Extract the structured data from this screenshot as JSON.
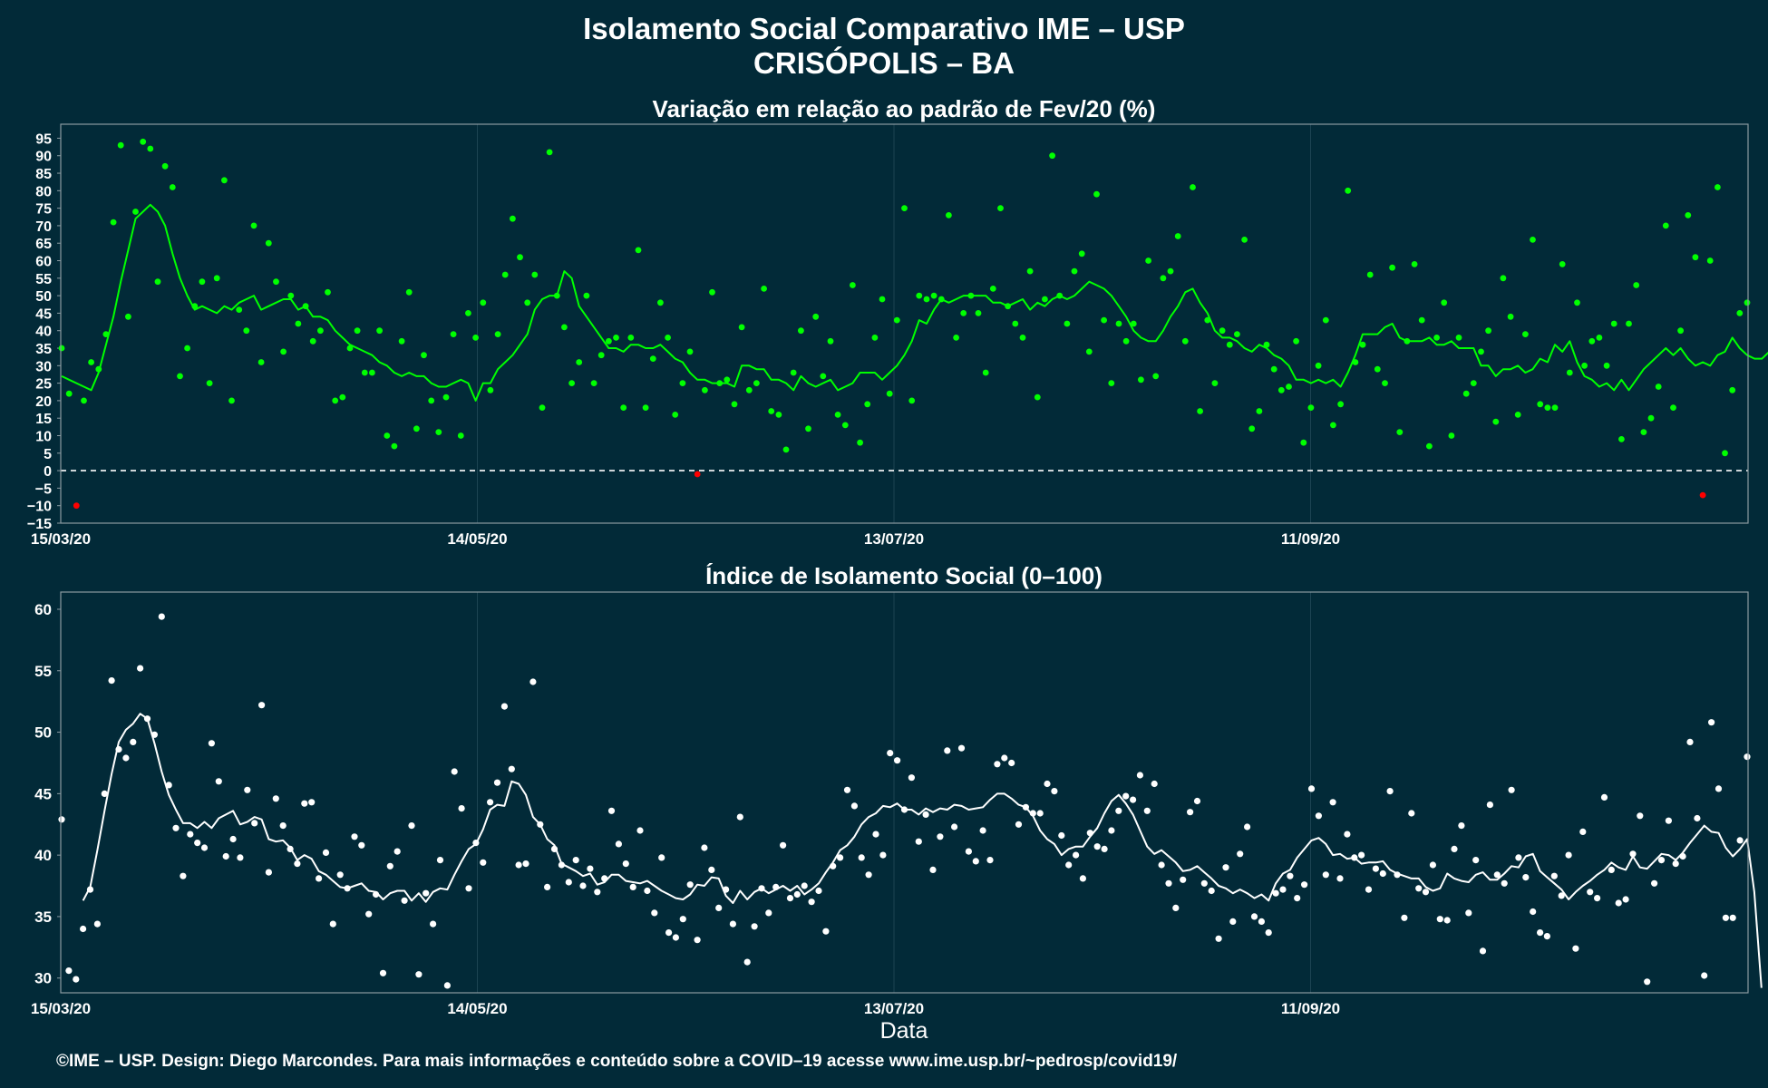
{
  "page": {
    "title_line1": "Isolamento Social Comparativo IME – USP",
    "title_line2": "CRISÓPOLIS – BA",
    "footer": "©IME – USP. Design: Diego Marcondes. Para mais informações e conteúdo sobre a COVID–19 acesse www.ime.usp.br/~pedrosp/covid19/",
    "xlabel": "Data"
  },
  "colors": {
    "background": "#022a38",
    "panel_border": "#8a9aa1",
    "grid": "#1d4452",
    "positive": "#00ff00",
    "negative": "#ff0000",
    "index": "#ffffff",
    "zero_line": "#ffffff"
  },
  "chart_data": [
    {
      "type": "scatter",
      "title": "Variação em relação ao padrão de Fev/20 (%)",
      "x_range": [
        "2020-03-15",
        "2020-11-13"
      ],
      "ylim": [
        -15,
        99
      ],
      "yticks": [
        95,
        90,
        85,
        80,
        75,
        70,
        65,
        60,
        55,
        50,
        45,
        40,
        35,
        30,
        25,
        20,
        15,
        10,
        5,
        0,
        -5,
        -10,
        -15
      ],
      "xticks": [
        {
          "label": "15/03/20",
          "date": "2020-03-15"
        },
        {
          "label": "14/05/20",
          "date": "2020-05-14"
        },
        {
          "label": "13/07/20",
          "date": "2020-07-13"
        },
        {
          "label": "11/09/20",
          "date": "2020-09-11"
        }
      ],
      "zero_line": true,
      "series": [
        {
          "kind": "points",
          "values": [
            35,
            22,
            -10,
            20,
            31,
            29,
            39,
            71,
            93,
            44,
            74,
            94,
            92,
            54,
            87,
            81,
            27,
            35,
            47,
            54,
            25,
            55,
            83,
            20,
            46,
            40,
            70,
            31,
            65,
            54,
            34,
            50,
            42,
            47,
            37,
            40,
            51,
            20,
            21,
            35,
            40,
            28,
            28,
            40,
            10,
            7,
            37,
            51,
            12,
            33,
            20,
            11,
            21,
            39,
            10,
            45,
            38,
            48,
            23,
            39,
            56,
            72,
            61,
            48,
            56,
            18,
            91,
            50,
            41,
            25,
            31,
            50,
            25,
            33,
            37,
            38,
            18,
            38,
            63,
            18,
            32,
            48,
            38,
            16,
            25,
            34,
            -1,
            23,
            51,
            25,
            26,
            19,
            41,
            23,
            25,
            52,
            17,
            16,
            6,
            28,
            40,
            12,
            44,
            27,
            37,
            16,
            13,
            53,
            8,
            19,
            38,
            49,
            22,
            43,
            75,
            20,
            50,
            49,
            50,
            49,
            73,
            38,
            45,
            50,
            45,
            28,
            52,
            75,
            47,
            42,
            38,
            57,
            21,
            49,
            90,
            50,
            42,
            57,
            62,
            34,
            79,
            43,
            25,
            42,
            37,
            42,
            26,
            60,
            27,
            55,
            57,
            67,
            37,
            81,
            17,
            43,
            25,
            40,
            36,
            39,
            66,
            12,
            17,
            36,
            29,
            23,
            24,
            37,
            8,
            18,
            30,
            43,
            13,
            19,
            80,
            31,
            36,
            56,
            29,
            25,
            58,
            11,
            37,
            59,
            43,
            7,
            38,
            48,
            10,
            38,
            22,
            25,
            34,
            40,
            14,
            55,
            44,
            16,
            39,
            66,
            19,
            18,
            18,
            59,
            28,
            48,
            30,
            37,
            38,
            30,
            42,
            9,
            42,
            53,
            11,
            15,
            24,
            70,
            18,
            40,
            73,
            61,
            -7,
            60,
            81,
            5,
            23,
            45,
            48
          ]
        },
        {
          "kind": "moving_average",
          "values": [
            27,
            26,
            25,
            24,
            23,
            28,
            36,
            44,
            54,
            63,
            72,
            74,
            76,
            74,
            70,
            62,
            55,
            50,
            46,
            47,
            46,
            45,
            47,
            46,
            48,
            49,
            50,
            46,
            47,
            48,
            49,
            49,
            46,
            47,
            44,
            44,
            43,
            40,
            38,
            36,
            35,
            34,
            33,
            31,
            30,
            28,
            27,
            28,
            27,
            27,
            25,
            24,
            24,
            25,
            26,
            25,
            20,
            25,
            25,
            29,
            31,
            33,
            36,
            39,
            46,
            49,
            50,
            50,
            57,
            55,
            47,
            44,
            41,
            38,
            35,
            35,
            34,
            36,
            36,
            35,
            35,
            36,
            34,
            32,
            31,
            28,
            26,
            26,
            25,
            25,
            25,
            24,
            30,
            30,
            29,
            29,
            26,
            26,
            25,
            23,
            27,
            25,
            24,
            25,
            26,
            23,
            24,
            25,
            28,
            28,
            28,
            26,
            28,
            30,
            33,
            37,
            43,
            42,
            46,
            49,
            48,
            49,
            50,
            50,
            50,
            50,
            48,
            48,
            47,
            48,
            49,
            46,
            48,
            47,
            49,
            50,
            49,
            50,
            52,
            54,
            53,
            52,
            50,
            47,
            44,
            40,
            38,
            37,
            37,
            40,
            44,
            47,
            51,
            52,
            48,
            45,
            40,
            38,
            38,
            37,
            35,
            34,
            36,
            35,
            33,
            32,
            30,
            26,
            26,
            25,
            26,
            25,
            26,
            24,
            28,
            33,
            39,
            39,
            39,
            41,
            42,
            38,
            37,
            37,
            37,
            38,
            36,
            36,
            37,
            35,
            35,
            35,
            30,
            30,
            27,
            29,
            29,
            30,
            28,
            29,
            32,
            31,
            36,
            34,
            37,
            31,
            27,
            26,
            24,
            25,
            23,
            26,
            23,
            26,
            29,
            31,
            33,
            35,
            33,
            35,
            32,
            30,
            31,
            30,
            33,
            34,
            38,
            35,
            33,
            32,
            32,
            34,
            32,
            30,
            29,
            29,
            31,
            33,
            42,
            41,
            44,
            46,
            45,
            42,
            37
          ]
        }
      ]
    },
    {
      "type": "scatter",
      "title": "Índice de Isolamento Social (0–100)",
      "x_range": [
        "2020-03-15",
        "2020-11-13"
      ],
      "ylim": [
        28.8,
        61.4
      ],
      "yticks": [
        60,
        55,
        50,
        45,
        40,
        35,
        30
      ],
      "xticks": [
        {
          "label": "15/03/20",
          "date": "2020-03-15"
        },
        {
          "label": "14/05/20",
          "date": "2020-05-14"
        },
        {
          "label": "13/07/20",
          "date": "2020-07-13"
        },
        {
          "label": "11/09/20",
          "date": "2020-09-11"
        }
      ],
      "series": [
        {
          "kind": "points",
          "values": [
            42.9,
            30.6,
            29.9,
            34.0,
            37.2,
            34.4,
            45.0,
            54.2,
            48.6,
            47.9,
            49.2,
            55.2,
            51.1,
            49.8,
            59.4,
            45.7,
            42.2,
            38.3,
            41.7,
            41.0,
            40.6,
            49.1,
            46.0,
            39.9,
            41.3,
            39.8,
            45.3,
            42.6,
            52.2,
            38.6,
            44.6,
            42.4,
            40.5,
            39.3,
            44.2,
            44.3,
            38.1,
            40.2,
            34.4,
            38.4,
            37.3,
            41.5,
            40.8,
            35.2,
            36.8,
            30.4,
            39.1,
            40.3,
            36.3,
            42.4,
            30.3,
            36.9,
            34.4,
            39.6,
            29.4,
            46.8,
            43.8,
            37.3,
            41.0,
            39.4,
            44.3,
            45.9,
            52.1,
            47.0,
            39.2,
            39.3,
            54.1,
            42.5,
            37.4,
            40.5,
            39.2,
            37.8,
            39.6,
            37.5,
            38.9,
            37.0,
            38.1,
            43.6,
            40.9,
            39.3,
            37.4,
            42.0,
            37.1,
            35.3,
            39.8,
            33.7,
            33.3,
            34.8,
            37.6,
            33.1,
            40.6,
            38.8,
            35.7,
            37.2,
            34.4,
            43.1,
            31.3,
            34.2,
            37.3,
            35.3,
            37.4,
            40.8,
            36.5,
            36.8,
            37.5,
            36.2,
            37.1,
            33.8,
            39.1,
            39.8,
            45.3,
            44.0,
            39.8,
            38.4,
            41.7,
            40.0,
            48.3,
            47.7,
            43.7,
            46.3,
            41.1,
            43.3,
            38.8,
            41.5,
            48.5,
            42.3,
            48.7,
            40.3,
            39.5,
            42.0,
            39.6,
            47.4,
            47.9,
            47.5,
            42.5,
            43.9,
            43.4,
            43.4,
            45.8,
            45.2,
            41.6,
            39.2,
            40.0,
            38.1,
            41.8,
            40.7,
            40.5,
            42.0,
            43.6,
            44.8,
            44.5,
            46.5,
            43.6,
            45.8,
            39.2,
            37.7,
            35.7,
            38.0,
            43.5,
            44.4,
            37.7,
            37.1,
            33.2,
            39.0,
            34.6,
            40.1,
            42.3,
            35.0,
            34.6,
            33.7,
            36.9,
            37.2,
            38.3,
            36.5,
            37.6,
            45.4,
            43.2,
            38.4,
            44.3,
            38.1,
            41.7,
            39.8,
            40.0,
            37.2,
            38.9,
            38.5,
            45.2,
            38.4,
            34.9,
            43.4,
            37.3,
            37.0,
            39.2,
            34.8,
            34.7,
            40.5,
            42.4,
            35.3,
            39.6,
            32.2,
            44.1,
            38.4,
            37.7,
            45.3,
            39.8,
            38.2,
            35.4,
            33.7,
            33.4,
            38.3,
            36.7,
            40.0,
            32.4,
            41.9,
            37.0,
            36.5,
            44.7,
            38.8,
            36.1,
            36.4,
            40.1,
            43.2,
            29.7,
            37.7,
            39.6,
            42.8,
            39.3,
            39.9,
            49.2,
            43.0,
            30.2,
            50.8,
            45.4,
            34.9,
            34.9,
            41.2,
            48.0
          ]
        },
        {
          "kind": "moving_average",
          "values": [
            null,
            null,
            null,
            36.3,
            37.4,
            40.4,
            43.6,
            46.6,
            49.2,
            50.2,
            50.7,
            51.5,
            51.1,
            49.1,
            46.8,
            44.9,
            43.7,
            42.6,
            42.6,
            42.2,
            42.7,
            42.2,
            43.0,
            43.3,
            43.6,
            42.5,
            42.7,
            43.1,
            42.9,
            41.3,
            41.1,
            41.2,
            40.6,
            39.6,
            40.0,
            39.7,
            38.7,
            38.4,
            37.9,
            37.4,
            37.3,
            37.5,
            37.7,
            37.1,
            37.0,
            36.4,
            36.9,
            37.1,
            37.1,
            36.3,
            36.9,
            36.2,
            37.0,
            37.3,
            37.2,
            38.4,
            39.5,
            40.5,
            40.9,
            42.1,
            43.7,
            44.1,
            44.0,
            46.0,
            45.8,
            44.9,
            43.1,
            42.5,
            41.3,
            40.8,
            39.3,
            39.0,
            38.7,
            38.3,
            38.5,
            37.6,
            37.8,
            38.4,
            38.4,
            37.9,
            37.8,
            37.7,
            37.9,
            37.5,
            37.1,
            36.8,
            36.5,
            36.4,
            36.8,
            37.6,
            37.5,
            38.2,
            38.1,
            36.7,
            36.1,
            37.1,
            36.4,
            37.0,
            37.3,
            36.9,
            37.2,
            37.5,
            37.1,
            37.5,
            36.8,
            37.2,
            37.7,
            38.6,
            39.4,
            40.4,
            40.8,
            41.5,
            42.5,
            43.1,
            43.4,
            44.0,
            43.9,
            44.2,
            43.7,
            43.7,
            43.3,
            43.8,
            43.5,
            43.8,
            43.7,
            44.1,
            44.0,
            43.7,
            43.8,
            43.9,
            44.5,
            45.0,
            45.0,
            44.6,
            44.1,
            43.9,
            43.2,
            42.0,
            41.3,
            40.9,
            40.0,
            40.5,
            40.7,
            40.7,
            41.5,
            42.2,
            43.4,
            44.4,
            44.9,
            44.2,
            43.3,
            42.0,
            40.7,
            40.1,
            40.4,
            39.9,
            39.4,
            38.7,
            38.8,
            39.1,
            38.6,
            38.1,
            37.5,
            37.3,
            36.9,
            37.2,
            36.9,
            36.5,
            36.8,
            36.3,
            37.7,
            38.5,
            38.8,
            39.8,
            40.5,
            41.2,
            41.4,
            40.9,
            40.0,
            40.1,
            39.7,
            39.8,
            39.3,
            39.4,
            39.4,
            39.5,
            38.8,
            38.5,
            38.3,
            38.1,
            38.1,
            37.4,
            37.1,
            37.3,
            38.5,
            38.1,
            37.9,
            37.8,
            38.4,
            38.6,
            38.0,
            38.0,
            38.5,
            39.1,
            39.0,
            39.9,
            40.1,
            38.7,
            38.2,
            37.7,
            37.2,
            36.4,
            37.0,
            37.5,
            37.9,
            38.4,
            38.8,
            39.4,
            39.0,
            38.8,
            39.9,
            39.0,
            38.9,
            39.5,
            40.1,
            40.0,
            39.6,
            40.2,
            41.0,
            41.7,
            42.4,
            41.9,
            41.8,
            40.6,
            39.9,
            40.5,
            41.3,
            37.0,
            29.2
          ]
        }
      ]
    }
  ]
}
